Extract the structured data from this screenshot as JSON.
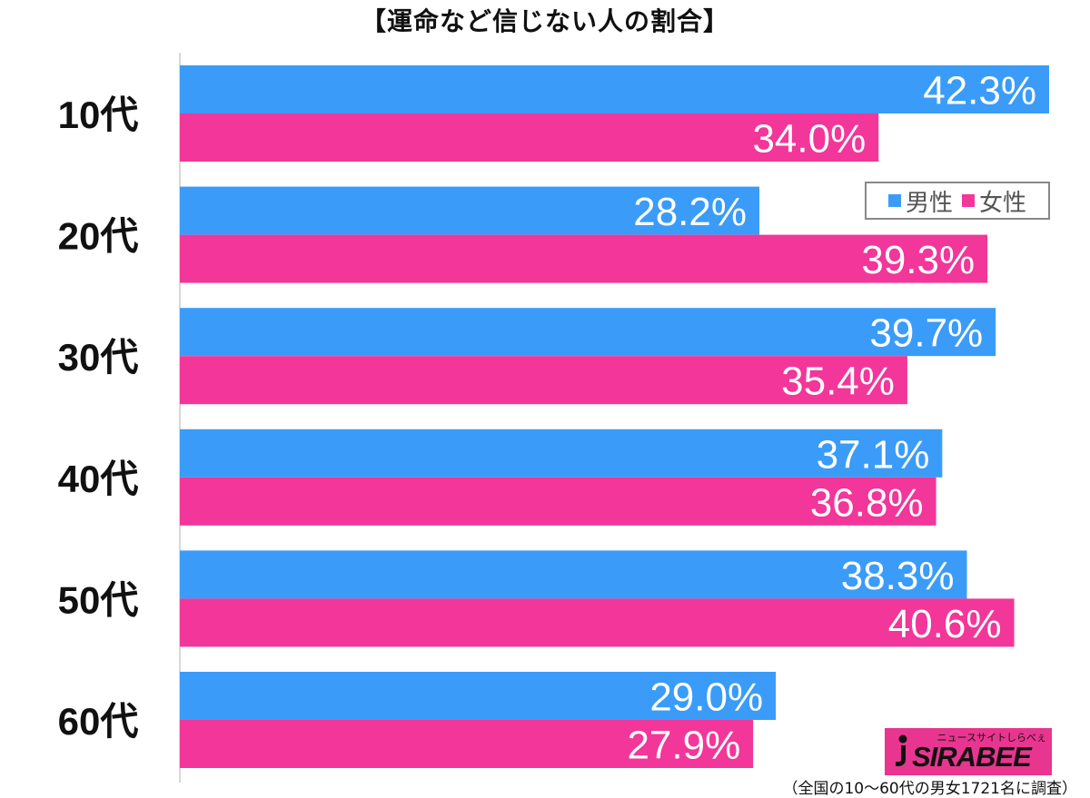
{
  "chart_data": {
    "type": "bar",
    "orientation": "horizontal",
    "title": "【運命など信じない人の割合】",
    "categories": [
      "10代",
      "20代",
      "30代",
      "40代",
      "50代",
      "60代"
    ],
    "series": [
      {
        "name": "男性",
        "color": "#3a9cf8",
        "values": [
          42.3,
          28.2,
          39.7,
          37.1,
          38.3,
          29.0
        ],
        "labels": [
          "42.3%",
          "28.2%",
          "39.7%",
          "37.1%",
          "38.3%",
          "29.0%"
        ]
      },
      {
        "name": "女性",
        "color": "#f2369a",
        "values": [
          34.0,
          39.3,
          35.4,
          36.8,
          40.6,
          27.9
        ],
        "labels": [
          "34.0%",
          "39.3%",
          "35.4%",
          "36.8%",
          "40.6%",
          "27.9%"
        ]
      }
    ],
    "xlim": [
      0,
      42.3
    ],
    "value_unit": "%",
    "grid": false,
    "legend_position": "top-right"
  },
  "logo": {
    "brand": "SIRABEE",
    "tagline": "ニュースサイトしらべぇ"
  },
  "footnote": "（全国の10〜60代の男女1721名に調査）"
}
